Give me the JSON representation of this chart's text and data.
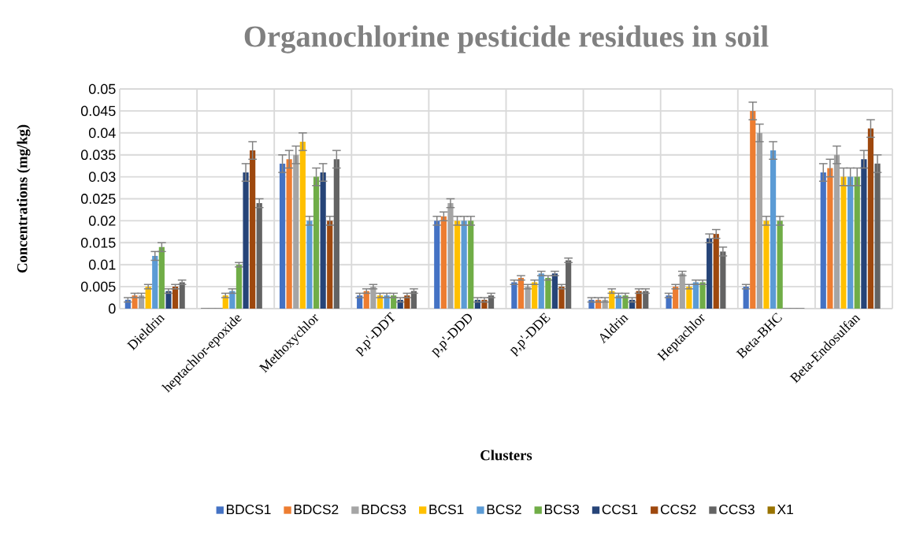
{
  "chart_data": {
    "type": "bar",
    "title": "Organochlorine pesticide residues in soil",
    "xlabel": "Clusters",
    "ylabel": "Concentrations (mg/kg)",
    "categories": [
      "Dieldrin",
      "heptachlor-epoxide",
      "Methoxychlor",
      "p,p'-DDT",
      "p,p'-DDD",
      "p,p'-DDE",
      "Aldrin",
      "Heptachlor",
      "Beta-BHC",
      "Beta-Endosulfan"
    ],
    "series": [
      {
        "name": "BDCS1",
        "color": "#4472c4",
        "values": [
          0.002,
          0,
          0.033,
          0.003,
          0.02,
          0.006,
          0.002,
          0.003,
          0.005,
          0.031
        ],
        "errors": [
          0.0005,
          null,
          0.002,
          0.0005,
          0.001,
          0.0005,
          0.0005,
          0.0005,
          0.0005,
          0.002
        ]
      },
      {
        "name": "BDCS2",
        "color": "#ed7d31",
        "values": [
          0.003,
          0,
          0.034,
          0.004,
          0.021,
          0.007,
          0.002,
          0.005,
          0.045,
          0.032
        ],
        "errors": [
          0.0005,
          null,
          0.002,
          0.0005,
          0.001,
          0.0005,
          0.0005,
          0.0005,
          0.002,
          0.002
        ]
      },
      {
        "name": "BDCS3",
        "color": "#a5a5a5",
        "values": [
          0.003,
          0,
          0.035,
          0.005,
          0.024,
          0.005,
          0.002,
          0.008,
          0.04,
          0.035
        ],
        "errors": [
          0.0005,
          null,
          0.002,
          0.0005,
          0.001,
          0.0005,
          0.0005,
          0.0005,
          0.002,
          0.002
        ]
      },
      {
        "name": "BCS1",
        "color": "#ffc000",
        "values": [
          0.005,
          0.003,
          0.038,
          0.003,
          0.02,
          0.006,
          0.004,
          0.005,
          0.02,
          0.03
        ],
        "errors": [
          0.0005,
          0.0005,
          0.002,
          0.0005,
          0.001,
          0.0005,
          0.0005,
          0.0005,
          0.001,
          0.002
        ]
      },
      {
        "name": "BCS2",
        "color": "#5b9bd5",
        "values": [
          0.012,
          0.004,
          0.02,
          0.003,
          0.02,
          0.008,
          0.003,
          0.006,
          0.036,
          0.03
        ],
        "errors": [
          0.001,
          0.0005,
          0.001,
          0.0005,
          0.001,
          0.0005,
          0.0005,
          0.0005,
          0.002,
          0.002
        ]
      },
      {
        "name": "BCS3",
        "color": "#70ad47",
        "values": [
          0.014,
          0.01,
          0.03,
          0.003,
          0.02,
          0.007,
          0.003,
          0.006,
          0.02,
          0.03
        ],
        "errors": [
          0.001,
          0.0005,
          0.002,
          0.0005,
          0.001,
          0.0005,
          0.0005,
          0.0005,
          0.001,
          0.002
        ]
      },
      {
        "name": "CCS1",
        "color": "#264478",
        "values": [
          0.004,
          0.031,
          0.031,
          0.002,
          0.002,
          0.008,
          0.002,
          0.016,
          0,
          0.034
        ],
        "errors": [
          0.0005,
          0.002,
          0.002,
          0.0005,
          0.0005,
          0.0005,
          0.0005,
          0.001,
          null,
          0.002
        ]
      },
      {
        "name": "CCS2",
        "color": "#9e480e",
        "values": [
          0.005,
          0.036,
          0.02,
          0.003,
          0.002,
          0.005,
          0.004,
          0.017,
          0,
          0.041
        ],
        "errors": [
          0.0005,
          0.002,
          0.001,
          0.0005,
          0.0005,
          0.0005,
          0.0005,
          0.001,
          null,
          0.002
        ]
      },
      {
        "name": "CCS3",
        "color": "#636363",
        "values": [
          0.006,
          0.024,
          0.034,
          0.004,
          0.003,
          0.011,
          0.004,
          0.013,
          0,
          0.033
        ],
        "errors": [
          0.0005,
          0.001,
          0.002,
          0.0005,
          0.0005,
          0.0005,
          0.0005,
          0.001,
          null,
          0.002
        ]
      },
      {
        "name": "X1",
        "color": "#997300",
        "values": [
          0,
          0,
          0,
          0,
          0,
          0,
          0,
          0,
          0,
          0
        ]
      }
    ],
    "ylim": [
      0,
      0.05
    ],
    "yticks": [
      0,
      0.005,
      0.01,
      0.015,
      0.02,
      0.025,
      0.03,
      0.035,
      0.04,
      0.045,
      0.05
    ],
    "grid": true,
    "legend": "bottom"
  }
}
